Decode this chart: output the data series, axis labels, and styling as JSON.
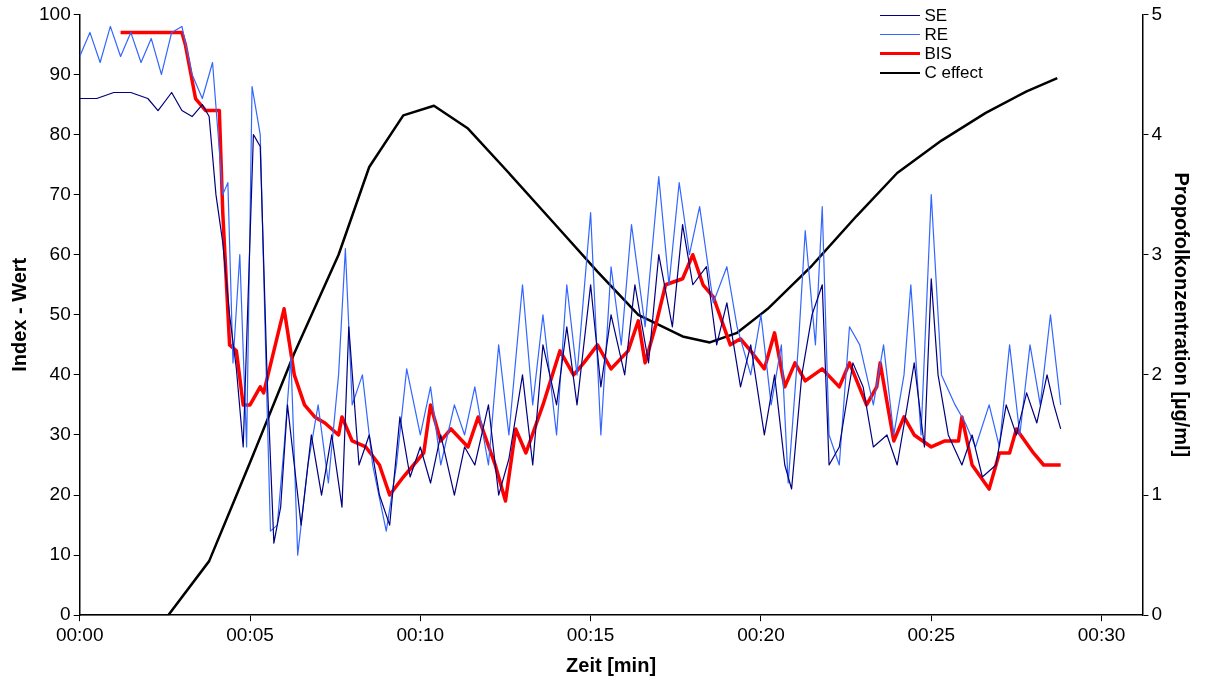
{
  "chart_data": {
    "type": "line",
    "xlabel": "Zeit [min]",
    "ylabel": "Index - Wert",
    "y2label": "Propofolkonzentration [µg/ml]",
    "xlim": [
      0,
      31.2
    ],
    "xticks": [
      {
        "value": 0,
        "label": "00:00"
      },
      {
        "value": 5,
        "label": "00:05"
      },
      {
        "value": 10,
        "label": "00:10"
      },
      {
        "value": 15,
        "label": "00:15"
      },
      {
        "value": 20,
        "label": "00:20"
      },
      {
        "value": 25,
        "label": "00:25"
      },
      {
        "value": 30,
        "label": "00:30"
      }
    ],
    "ylim": [
      0,
      100
    ],
    "yticks": [
      0,
      10,
      20,
      30,
      40,
      50,
      60,
      70,
      80,
      90,
      100
    ],
    "y2lim": [
      0,
      5
    ],
    "y2ticks": [
      0,
      1,
      2,
      3,
      4,
      5
    ],
    "grid": false,
    "legend": "top right",
    "marker": "none",
    "line_style": "solid",
    "series": [
      {
        "name": "SE",
        "color": "#000080",
        "x": [
          0,
          0.5,
          1.0,
          1.5,
          2.0,
          2.3,
          2.7,
          3.0,
          3.3,
          3.6,
          3.8,
          4.0,
          4.2,
          4.4,
          4.6,
          4.8,
          5.1,
          5.3,
          5.5,
          5.7,
          5.9,
          6.1,
          6.3,
          6.5,
          6.8,
          7.1,
          7.4,
          7.7,
          7.9,
          8.2,
          8.5,
          8.8,
          9.1,
          9.4,
          9.7,
          10.0,
          10.3,
          10.6,
          11.0,
          11.3,
          11.6,
          12.0,
          12.3,
          12.6,
          13.0,
          13.3,
          13.6,
          14.0,
          14.3,
          14.6,
          15.0,
          15.3,
          15.6,
          16.0,
          16.3,
          16.7,
          17.0,
          17.4,
          17.7,
          18.0,
          18.4,
          18.7,
          19.0,
          19.4,
          19.7,
          20.1,
          20.4,
          20.7,
          20.9,
          21.2,
          21.5,
          21.8,
          22.0,
          22.3,
          22.7,
          23.0,
          23.3,
          23.7,
          24.0,
          24.3,
          24.5,
          24.8,
          25.0,
          25.2,
          25.5,
          25.9,
          26.2,
          26.5,
          26.9,
          27.2,
          27.5,
          27.8,
          28.1,
          28.4,
          28.6,
          28.8
        ],
        "values": [
          86,
          86,
          87,
          87,
          86,
          84,
          87,
          84,
          83,
          85,
          83,
          70,
          62,
          50,
          41,
          28,
          80,
          78,
          40,
          12,
          18,
          35,
          25,
          15,
          30,
          20,
          30,
          18,
          48,
          25,
          30,
          20,
          15,
          33,
          23,
          28,
          22,
          30,
          20,
          28,
          25,
          35,
          20,
          26,
          40,
          25,
          45,
          35,
          48,
          35,
          55,
          38,
          50,
          40,
          55,
          42,
          60,
          48,
          65,
          55,
          58,
          45,
          52,
          38,
          45,
          30,
          40,
          25,
          21,
          40,
          50,
          55,
          25,
          28,
          42,
          38,
          28,
          30,
          25,
          35,
          42,
          28,
          56,
          40,
          30,
          25,
          30,
          23,
          25,
          35,
          30,
          37,
          32,
          40,
          35,
          31
        ]
      },
      {
        "name": "RE",
        "color": "#3366ff",
        "x": [
          0,
          0.3,
          0.6,
          0.9,
          1.2,
          1.5,
          1.8,
          2.1,
          2.4,
          2.7,
          3.0,
          3.3,
          3.6,
          3.9,
          4.2,
          4.35,
          4.5,
          4.7,
          4.9,
          5.06,
          5.3,
          5.5,
          5.6,
          5.8,
          6.0,
          6.2,
          6.4,
          6.7,
          7.0,
          7.3,
          7.6,
          7.8,
          8.0,
          8.3,
          8.6,
          9.0,
          9.3,
          9.6,
          10.0,
          10.3,
          10.6,
          11.0,
          11.3,
          11.6,
          12.0,
          12.3,
          12.6,
          13.0,
          13.3,
          13.6,
          14.0,
          14.3,
          14.6,
          15.0,
          15.3,
          15.6,
          15.9,
          16.2,
          16.6,
          17.0,
          17.3,
          17.6,
          17.9,
          18.2,
          18.6,
          19.0,
          19.3,
          19.7,
          20.0,
          20.3,
          20.6,
          20.8,
          21.1,
          21.3,
          21.6,
          21.8,
          22.0,
          22.3,
          22.6,
          22.9,
          23.3,
          23.6,
          23.9,
          24.2,
          24.4,
          24.7,
          25.0,
          25.3,
          25.7,
          26.0,
          26.3,
          26.7,
          27.0,
          27.3,
          27.6,
          27.9,
          28.2,
          28.5,
          28.7,
          28.8
        ],
        "values": [
          93,
          97,
          92,
          98,
          93,
          97,
          92,
          96,
          90,
          97,
          98,
          90,
          86,
          92,
          70,
          72,
          42,
          60,
          28,
          88,
          80,
          35,
          14,
          15,
          28,
          43,
          10,
          25,
          35,
          22,
          40,
          61,
          35,
          40,
          25,
          14,
          25,
          41,
          30,
          38,
          25,
          35,
          30,
          38,
          25,
          45,
          30,
          55,
          35,
          50,
          30,
          55,
          40,
          67,
          30,
          58,
          45,
          65,
          48,
          73,
          55,
          72,
          60,
          68,
          52,
          58,
          48,
          40,
          50,
          35,
          45,
          22,
          45,
          64,
          45,
          68,
          30,
          25,
          48,
          45,
          35,
          45,
          30,
          40,
          55,
          30,
          70,
          40,
          35,
          32,
          28,
          35,
          28,
          45,
          30,
          45,
          35,
          50,
          40,
          35
        ]
      },
      {
        "name": "BIS",
        "color": "#ff0000",
        "x": [
          1.2,
          2.3,
          3.0,
          3.1,
          3.4,
          3.7,
          4.1,
          4.2,
          4.4,
          4.6,
          4.8,
          5.0,
          5.3,
          5.4,
          5.7,
          6.0,
          6.3,
          6.6,
          6.9,
          7.2,
          7.6,
          7.7,
          8.0,
          8.4,
          8.8,
          9.1,
          9.5,
          9.8,
          10.1,
          10.3,
          10.6,
          10.9,
          11.4,
          11.7,
          12.2,
          12.5,
          12.8,
          13.1,
          13.6,
          14.1,
          14.5,
          14.8,
          15.2,
          15.6,
          16.1,
          16.4,
          16.6,
          16.9,
          17.2,
          17.7,
          18.0,
          18.3,
          18.6,
          19.1,
          19.4,
          19.7,
          20.1,
          20.4,
          20.7,
          21.0,
          21.3,
          21.8,
          22.3,
          22.6,
          23.1,
          23.4,
          23.5,
          23.9,
          24.2,
          24.5,
          25.0,
          25.4,
          25.8,
          25.9,
          26.2,
          26.7,
          27.0,
          27.3,
          27.5,
          28.0,
          28.3,
          28.8
        ],
        "values": [
          97,
          97,
          97,
          95,
          86,
          84,
          84,
          67,
          45,
          44,
          35,
          35,
          38,
          37,
          44,
          51,
          40,
          35,
          33,
          32,
          30,
          33,
          29,
          28,
          25,
          20,
          23,
          25,
          27,
          35,
          29,
          31,
          28,
          33,
          25,
          19,
          31,
          27,
          35,
          44,
          40,
          42,
          45,
          41,
          44,
          49,
          42,
          48,
          55,
          56,
          60,
          55,
          53,
          45,
          46,
          44,
          41,
          47,
          38,
          42,
          39,
          41,
          38,
          42,
          35,
          38,
          42,
          29,
          33,
          30,
          28,
          29,
          29,
          33,
          25,
          21,
          27,
          27,
          31,
          27,
          25,
          25
        ]
      },
      {
        "name": "C effect",
        "color": "#000000",
        "axis": "y2",
        "x": [
          0,
          2.6,
          3.8,
          5.0,
          6.3,
          7.6,
          8.5,
          9.5,
          10.4,
          11.4,
          12.6,
          13.9,
          15.2,
          16.4,
          17.7,
          18.5,
          19.3,
          20.2,
          21.5,
          22.8,
          24.0,
          25.3,
          26.6,
          27.8,
          28.7
        ],
        "values": [
          0,
          0,
          0.45,
          1.27,
          2.18,
          3.0,
          3.73,
          4.16,
          4.24,
          4.05,
          3.68,
          3.27,
          2.86,
          2.5,
          2.32,
          2.27,
          2.35,
          2.55,
          2.91,
          3.32,
          3.68,
          3.95,
          4.18,
          4.36,
          4.47
        ]
      }
    ]
  }
}
